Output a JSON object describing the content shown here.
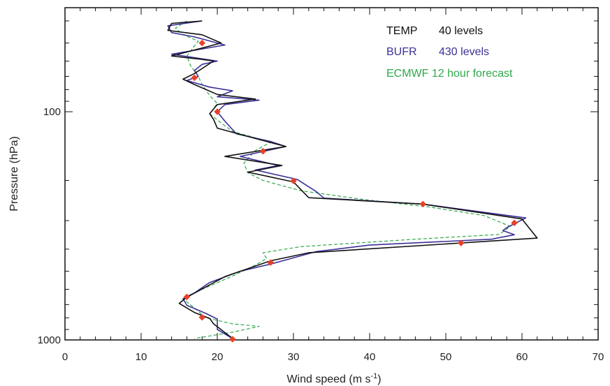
{
  "chart_data": {
    "type": "line",
    "xlabel": "Wind speed (m s",
    "xlabel_superscript": "-1",
    "xlabel_suffix": ")",
    "ylabel": "Pressure (hPa)",
    "xlim": [
      0,
      70
    ],
    "ylim": [
      1000,
      35
    ],
    "yscale": "log",
    "x_ticks": [
      0,
      10,
      20,
      30,
      40,
      50,
      60,
      70
    ],
    "x_tick_labels": [
      "0",
      "10",
      "20",
      "30",
      "40",
      "50",
      "60",
      "70"
    ],
    "y_tick_labels": [
      {
        "value": 100,
        "label": "100"
      },
      {
        "value": 1000,
        "label": "1000"
      }
    ],
    "legend_position": "top-right",
    "series": [
      {
        "name": "TEMP",
        "legend_text": "40 levels",
        "color": "#111111",
        "style": "solid",
        "points": [
          [
            18,
            40
          ],
          [
            14,
            41
          ],
          [
            13.5,
            44
          ],
          [
            18,
            46
          ],
          [
            20.5,
            50
          ],
          [
            14,
            57
          ],
          [
            18,
            59
          ],
          [
            19.5,
            60
          ],
          [
            17,
            68
          ],
          [
            15.5,
            72
          ],
          [
            17,
            76
          ],
          [
            20,
            84
          ],
          [
            25,
            88
          ],
          [
            20,
            93
          ],
          [
            19,
            102
          ],
          [
            19.5,
            108
          ],
          [
            20,
            118
          ],
          [
            25,
            131
          ],
          [
            29,
            142
          ],
          [
            21,
            157
          ],
          [
            28.5,
            172
          ],
          [
            24,
            184
          ],
          [
            30,
            203
          ],
          [
            32,
            238
          ],
          [
            47,
            254
          ],
          [
            60,
            295
          ],
          [
            62,
            358
          ],
          [
            52,
            376
          ],
          [
            32,
            415
          ],
          [
            27,
            450
          ],
          [
            21,
            528
          ],
          [
            16,
            650
          ],
          [
            15,
            692
          ],
          [
            17,
            758
          ],
          [
            19,
            805
          ],
          [
            19.5,
            850
          ],
          [
            22,
            985
          ]
        ]
      },
      {
        "name": "BUFR",
        "legend_text": "430 levels",
        "color": "#3a3196",
        "style": "solid",
        "points": [
          [
            18,
            40
          ],
          [
            13.5,
            42
          ],
          [
            14,
            45
          ],
          [
            17,
            47
          ],
          [
            21,
            51
          ],
          [
            14,
            56
          ],
          [
            20,
            60
          ],
          [
            18,
            62
          ],
          [
            17,
            66
          ],
          [
            17.5,
            70
          ],
          [
            16,
            73
          ],
          [
            19,
            78
          ],
          [
            22,
            81
          ],
          [
            20,
            86
          ],
          [
            25.5,
            89
          ],
          [
            21,
            93
          ],
          [
            20,
            100
          ],
          [
            21,
            110
          ],
          [
            22.5,
            125
          ],
          [
            27,
            135
          ],
          [
            29,
            142
          ],
          [
            23,
            157
          ],
          [
            28,
            172
          ],
          [
            25,
            180
          ],
          [
            30.5,
            198
          ],
          [
            33,
            224
          ],
          [
            34,
            239
          ],
          [
            47,
            254
          ],
          [
            60.5,
            292
          ],
          [
            58,
            322
          ],
          [
            57.5,
            332
          ],
          [
            59,
            346
          ],
          [
            56,
            362
          ],
          [
            40,
            384
          ],
          [
            33,
            410
          ],
          [
            29,
            446
          ],
          [
            27,
            465
          ],
          [
            23,
            500
          ],
          [
            19,
            560
          ],
          [
            17,
            622
          ],
          [
            15.5,
            660
          ],
          [
            16,
            705
          ],
          [
            18.5,
            765
          ],
          [
            20,
            810
          ],
          [
            20,
            900
          ],
          [
            22,
            985
          ]
        ]
      },
      {
        "name": "ECMWF 12 hour forecast",
        "legend_text": "",
        "color": "#2fa84a",
        "style": "dashed",
        "points": [
          [
            16,
            40
          ],
          [
            14.5,
            43
          ],
          [
            15.5,
            46
          ],
          [
            17.5,
            49
          ],
          [
            16,
            57
          ],
          [
            16.5,
            63
          ],
          [
            17.5,
            70
          ],
          [
            18,
            76
          ],
          [
            19,
            85
          ],
          [
            20,
            92
          ],
          [
            19,
            102
          ],
          [
            20.5,
            112
          ],
          [
            22,
            122
          ],
          [
            27,
            136
          ],
          [
            25,
            148
          ],
          [
            23.5,
            168
          ],
          [
            24,
            185
          ],
          [
            26,
            200
          ],
          [
            31,
            222
          ],
          [
            39,
            242
          ],
          [
            48,
            262
          ],
          [
            55,
            285
          ],
          [
            58.5,
            318
          ],
          [
            57,
            345
          ],
          [
            46,
            362
          ],
          [
            31,
            390
          ],
          [
            26,
            415
          ],
          [
            26.5,
            440
          ],
          [
            25,
            470
          ],
          [
            22,
            525
          ],
          [
            18,
            600
          ],
          [
            15.5,
            660
          ],
          [
            17,
            725
          ],
          [
            18.5,
            800
          ],
          [
            22,
            850
          ],
          [
            25.5,
            872
          ],
          [
            22,
            925
          ],
          [
            17,
            985
          ]
        ]
      }
    ],
    "markers": {
      "color": "#e8412a",
      "shape": "diamond",
      "points": [
        [
          18,
          50
        ],
        [
          17,
          71
        ],
        [
          20,
          100
        ],
        [
          26,
          149
        ],
        [
          30,
          201
        ],
        [
          47,
          254
        ],
        [
          59,
          307
        ],
        [
          52,
          376
        ],
        [
          27,
          458
        ],
        [
          16,
          648
        ],
        [
          18,
          796
        ],
        [
          22,
          993
        ]
      ]
    }
  }
}
